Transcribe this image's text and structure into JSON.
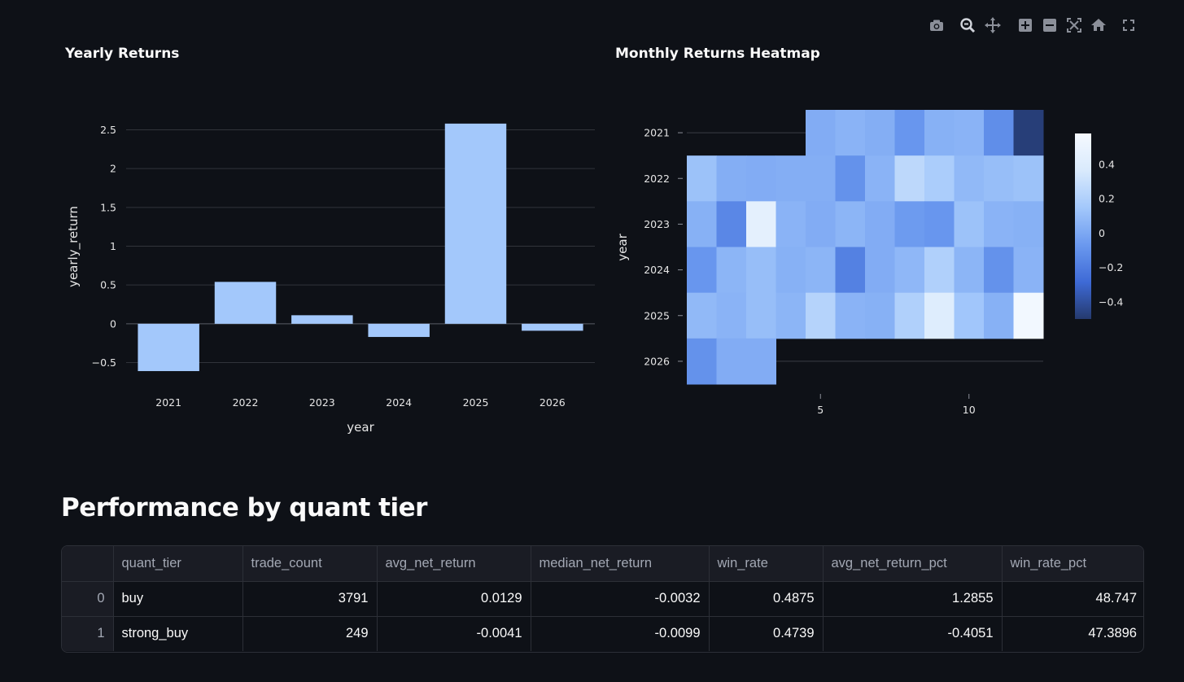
{
  "modebar": {
    "icons": [
      "camera-icon",
      "zoom-icon",
      "pan-icon",
      "zoom-in-icon",
      "zoom-out-icon",
      "autoscale-icon",
      "home-icon",
      "fullscreen-icon"
    ]
  },
  "chart_data": [
    {
      "type": "bar",
      "title": "Yearly Returns",
      "xlabel": "year",
      "ylabel": "yearly_return",
      "categories": [
        "2021",
        "2022",
        "2023",
        "2024",
        "2025",
        "2026"
      ],
      "values": [
        -0.61,
        0.54,
        0.11,
        -0.17,
        2.58,
        -0.09
      ],
      "yticks": [
        "2.5",
        "2",
        "1.5",
        "1",
        "0.5",
        "0",
        "−0.5"
      ],
      "ytick_values": [
        2.5,
        2,
        1.5,
        1,
        0.5,
        0,
        -0.5
      ],
      "ylim": [
        -0.6,
        2.65
      ],
      "bar_color": "#a3c8fb",
      "grid": true
    },
    {
      "type": "heatmap",
      "title": "Monthly Returns Heatmap",
      "xlabel": "",
      "ylabel": "year",
      "x": [
        1,
        2,
        3,
        4,
        5,
        6,
        7,
        8,
        9,
        10,
        11,
        12
      ],
      "y": [
        "2021",
        "2022",
        "2023",
        "2024",
        "2025",
        "2026"
      ],
      "xticks": [
        "5",
        "10"
      ],
      "xtick_values": [
        5,
        10
      ],
      "z": [
        [
          null,
          null,
          null,
          null,
          0.02,
          0.05,
          0.03,
          -0.08,
          0.04,
          0.05,
          -0.12,
          -0.48
        ],
        [
          0.12,
          0.03,
          0.02,
          0.03,
          0.03,
          -0.1,
          0.05,
          0.25,
          0.18,
          0.08,
          0.1,
          0.12
        ],
        [
          0.04,
          -0.15,
          0.45,
          0.05,
          0.02,
          0.06,
          0.02,
          -0.06,
          -0.08,
          0.12,
          0.05,
          0.04
        ],
        [
          -0.08,
          0.06,
          0.1,
          0.04,
          0.06,
          -0.18,
          0.02,
          0.07,
          0.2,
          0.06,
          -0.1,
          0.05
        ],
        [
          0.08,
          0.05,
          0.1,
          0.06,
          0.22,
          0.05,
          0.04,
          0.2,
          0.4,
          0.14,
          0.04,
          0.56
        ],
        [
          -0.1,
          0.02,
          0.02,
          null,
          null,
          null,
          null,
          null,
          null,
          null,
          null,
          null
        ]
      ],
      "colorbar_ticks": [
        "0.4",
        "0.2",
        "0",
        "−0.2",
        "−0.4"
      ],
      "colorbar_tick_values": [
        0.4,
        0.2,
        0,
        -0.2,
        -0.4
      ],
      "zlim": [
        -0.5,
        0.58
      ],
      "colorscale": [
        "#253a6e",
        "#3e6ad6",
        "#6b99ef",
        "#a3c8fb",
        "#d9eafc",
        "#f5f9ff"
      ]
    }
  ],
  "section": {
    "title": "Performance by quant tier"
  },
  "table": {
    "columns": [
      "",
      "quant_tier",
      "trade_count",
      "avg_net_return",
      "median_net_return",
      "win_rate",
      "avg_net_return_pct",
      "win_rate_pct"
    ],
    "rows": [
      [
        "0",
        "buy",
        "3791",
        "0.0129",
        "-0.0032",
        "0.4875",
        "1.2855",
        "48.747"
      ],
      [
        "1",
        "strong_buy",
        "249",
        "-0.0041",
        "-0.0099",
        "0.4739",
        "-0.4051",
        "47.3896"
      ]
    ]
  }
}
